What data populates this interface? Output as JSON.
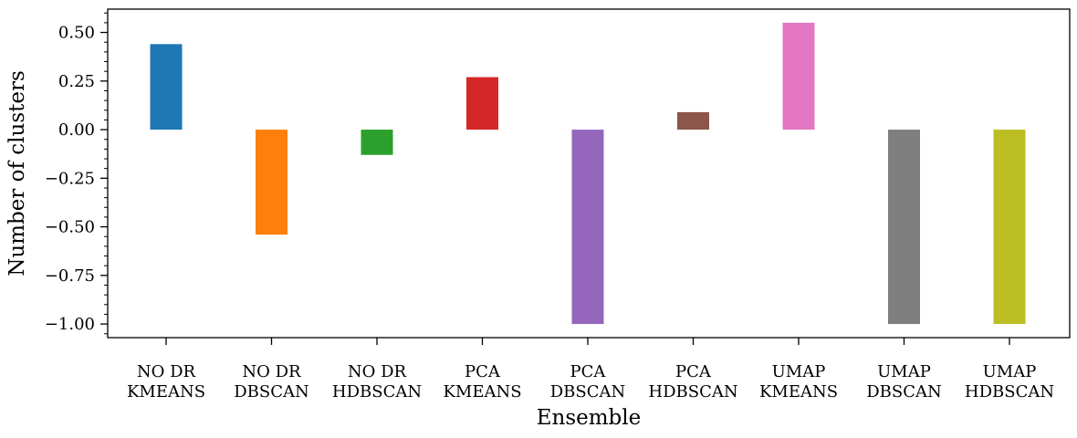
{
  "chart_data": {
    "type": "bar",
    "title": "",
    "xlabel": "Ensemble",
    "ylabel": "Number of clusters",
    "ylim": [
      -1.07,
      0.62
    ],
    "yticks": [
      0.5,
      0.25,
      0.0,
      -0.25,
      -0.5,
      -0.75,
      -1.0
    ],
    "ytick_labels": [
      "0.50",
      "0.25",
      "0.00",
      "−0.25",
      "−0.50",
      "−0.75",
      "−1.00"
    ],
    "grid": false,
    "categories": [
      [
        "NO DR",
        "KMEANS"
      ],
      [
        "NO DR",
        "DBSCAN"
      ],
      [
        "NO DR",
        "HDBSCAN"
      ],
      [
        "PCA",
        "KMEANS"
      ],
      [
        "PCA",
        "DBSCAN"
      ],
      [
        "PCA",
        "HDBSCAN"
      ],
      [
        "UMAP",
        "KMEANS"
      ],
      [
        "UMAP",
        "DBSCAN"
      ],
      [
        "UMAP",
        "HDBSCAN"
      ]
    ],
    "values": [
      0.44,
      -0.54,
      -0.13,
      0.27,
      -1.0,
      0.09,
      0.55,
      -1.0,
      -1.0
    ],
    "colors": [
      "#1f77b4",
      "#ff7f0e",
      "#2ca02c",
      "#d62728",
      "#9467bd",
      "#8c564b",
      "#e377c2",
      "#7f7f7f",
      "#bcbd22"
    ]
  }
}
